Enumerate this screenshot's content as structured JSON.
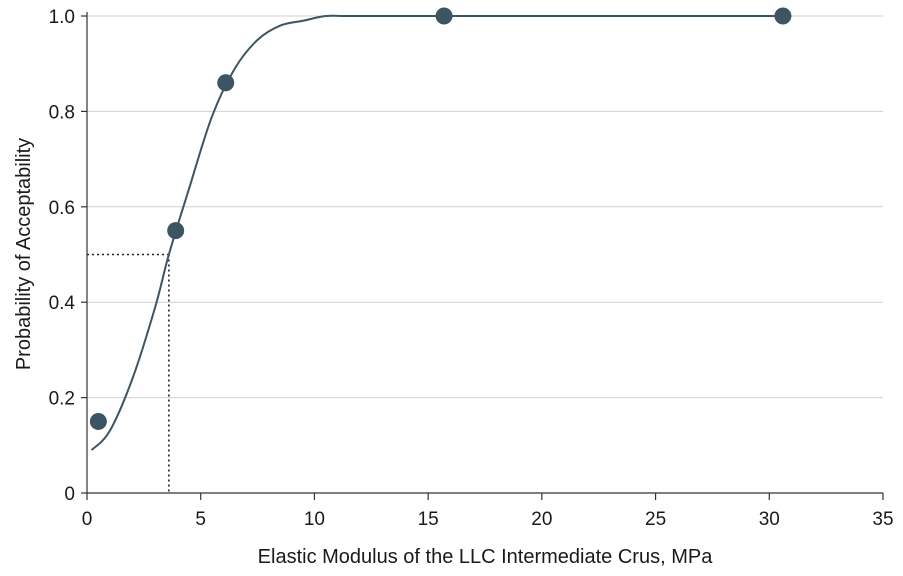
{
  "chart_data": {
    "type": "scatter",
    "title": "",
    "xlabel": "Elastic Modulus of the LLC Intermediate Crus, MPa",
    "ylabel": "Probability of Acceptability",
    "xlim": [
      0,
      35
    ],
    "ylim": [
      0,
      1.0
    ],
    "xticks": [
      0,
      5,
      10,
      15,
      20,
      25,
      30,
      35
    ],
    "xtick_labels": [
      "0",
      "5",
      "10",
      "15",
      "20",
      "25",
      "30",
      "35"
    ],
    "yticks": [
      0,
      0.2,
      0.4,
      0.6,
      0.8,
      1.0
    ],
    "ytick_labels": [
      "0",
      "0.2",
      "0.4",
      "0.6",
      "0.8",
      "1.0"
    ],
    "grid": "horizontal",
    "legend": "none",
    "series": [
      {
        "kind": "points",
        "color": "#3b5563",
        "x": [
          0.5,
          3.9,
          6.1,
          15.7,
          30.6
        ],
        "y": [
          0.15,
          0.55,
          0.86,
          1.0,
          1.0
        ]
      },
      {
        "kind": "fitted-curve",
        "color": "#3b5563",
        "x": [
          0.2,
          1.0,
          2.0,
          3.0,
          3.6,
          4.5,
          5.5,
          6.5,
          7.5,
          8.5,
          9.5,
          10.5,
          11.5,
          15.0,
          20.0,
          25.0,
          30.5
        ],
        "y": [
          0.09,
          0.13,
          0.24,
          0.39,
          0.5,
          0.64,
          0.79,
          0.89,
          0.95,
          0.98,
          0.99,
          1.0,
          1.0,
          1.0,
          1.0,
          1.0,
          1.0
        ]
      }
    ],
    "reference_lines": {
      "x": 3.6,
      "y": 0.5,
      "style": "dotted"
    }
  }
}
